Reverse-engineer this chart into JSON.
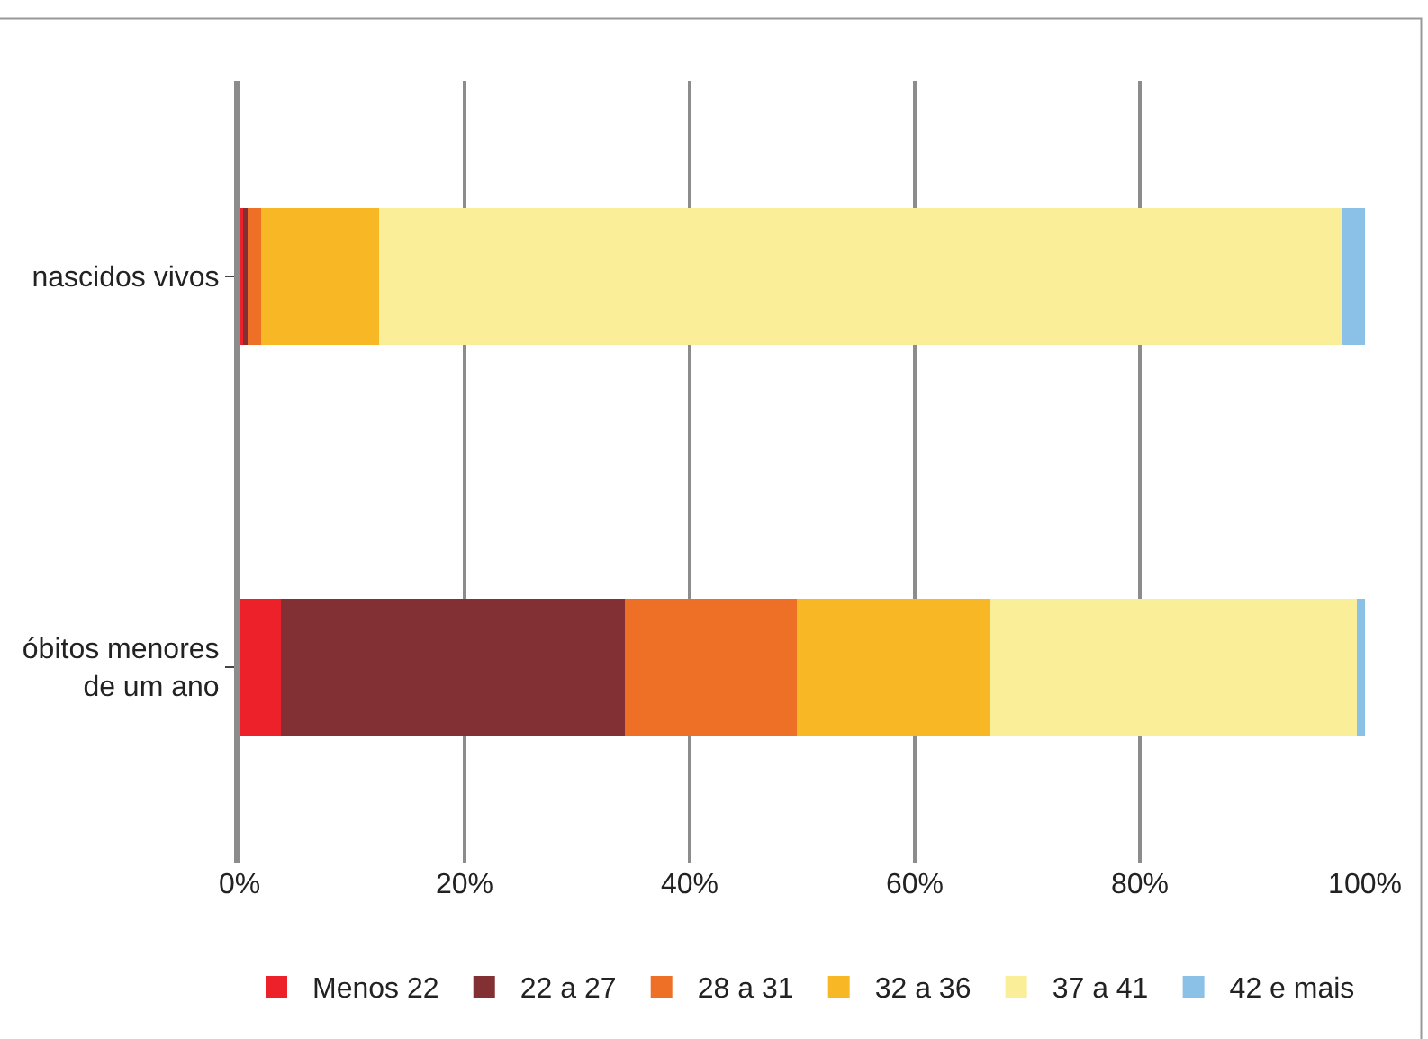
{
  "chart_data": {
    "type": "bar",
    "orientation": "horizontal",
    "stacked": true,
    "categories": [
      "nascidos vivos",
      "óbitos menores de um ano"
    ],
    "series": [
      {
        "name": "Menos 22",
        "color": "#ed2129",
        "values": [
          0.3,
          3.7
        ]
      },
      {
        "name": "22 a 27",
        "color": "#823033",
        "values": [
          0.4,
          30.5
        ]
      },
      {
        "name": "28 a 31",
        "color": "#ee7027",
        "values": [
          1.2,
          15.3
        ]
      },
      {
        "name": "32 a 36",
        "color": "#f8b826",
        "values": [
          10.5,
          17.1
        ]
      },
      {
        "name": "37 a 41",
        "color": "#faee98",
        "values": [
          85.6,
          32.7
        ]
      },
      {
        "name": "42 e mais",
        "color": "#8bc1e6",
        "values": [
          2.0,
          0.7
        ]
      }
    ],
    "xlim": [
      0,
      100
    ],
    "xticks": [
      {
        "value": 0,
        "label": "0%"
      },
      {
        "value": 20,
        "label": "20%"
      },
      {
        "value": 40,
        "label": "40%"
      },
      {
        "value": 60,
        "label": "60%"
      },
      {
        "value": 80,
        "label": "80%"
      },
      {
        "value": 100,
        "label": "100%"
      }
    ],
    "grid": "x",
    "legend": "bottom"
  }
}
